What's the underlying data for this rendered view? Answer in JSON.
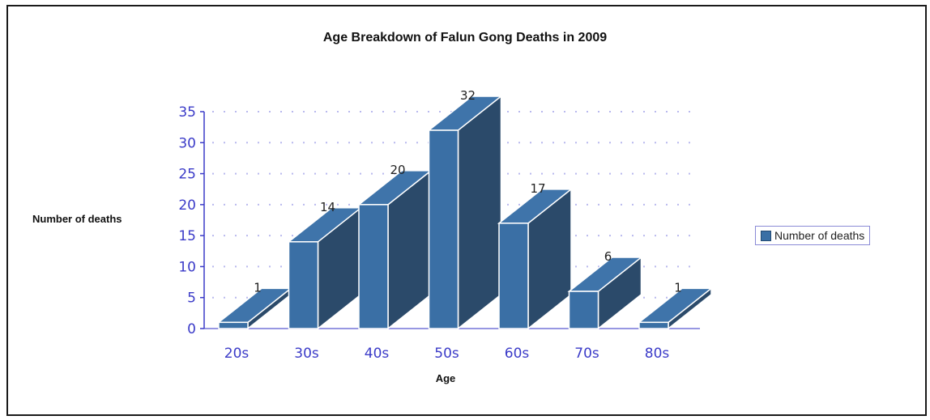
{
  "chart_data": {
    "type": "bar",
    "title": "Age Breakdown of Falun Gong Deaths in 2009",
    "xlabel": "Age",
    "ylabel": "Number of deaths",
    "categories": [
      "20s",
      "30s",
      "40s",
      "50s",
      "60s",
      "70s",
      "80s"
    ],
    "series": [
      {
        "name": "Number of deaths",
        "values": [
          1,
          14,
          20,
          32,
          17,
          6,
          1
        ]
      }
    ],
    "ylim": [
      0,
      35
    ],
    "yticks": [
      0,
      5,
      10,
      15,
      20,
      25,
      30,
      35
    ],
    "grid": true,
    "legend": "right",
    "colors": {
      "bar_front": "#3a6fa5",
      "bar_top": "#3f74aa",
      "bar_side": "#2b4a6a",
      "tick_text": "#3b3bc8",
      "grid": "#b9b9ee"
    }
  }
}
